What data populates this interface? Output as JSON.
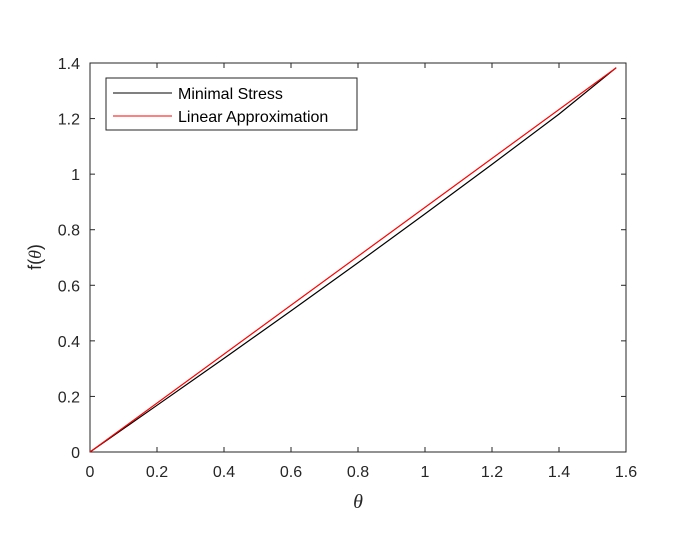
{
  "chart_data": {
    "type": "line",
    "title": "",
    "xlabel": "θ",
    "ylabel_prefix": "f(",
    "ylabel_var": "θ",
    "ylabel_suffix": ")",
    "xlim": [
      0,
      1.6
    ],
    "ylim": [
      0,
      1.4
    ],
    "xticks": [
      0,
      0.2,
      0.4,
      0.6,
      0.8,
      1,
      1.2,
      1.4,
      1.6
    ],
    "yticks": [
      0,
      0.2,
      0.4,
      0.6,
      0.8,
      1,
      1.2,
      1.4
    ],
    "xtick_labels": [
      "0",
      "0.2",
      "0.4",
      "0.6",
      "0.8",
      "1",
      "1.2",
      "1.4",
      "1.6"
    ],
    "ytick_labels": [
      "0",
      "0.2",
      "0.4",
      "0.6",
      "0.8",
      "1",
      "1.2",
      "1.4"
    ],
    "grid": false,
    "legend_position": "top-left",
    "series": [
      {
        "name": "Minimal Stress",
        "color": "#000000",
        "x": [
          0,
          0.2,
          0.4,
          0.6,
          0.8,
          1.0,
          1.2,
          1.4,
          1.5708
        ],
        "y": [
          0,
          0.168,
          0.337,
          0.508,
          0.681,
          0.857,
          1.035,
          1.216,
          1.383
        ]
      },
      {
        "name": "Linear Approximation",
        "color": "#ff0000",
        "x": [
          0,
          1.5708
        ],
        "y": [
          0,
          1.383
        ]
      }
    ]
  }
}
